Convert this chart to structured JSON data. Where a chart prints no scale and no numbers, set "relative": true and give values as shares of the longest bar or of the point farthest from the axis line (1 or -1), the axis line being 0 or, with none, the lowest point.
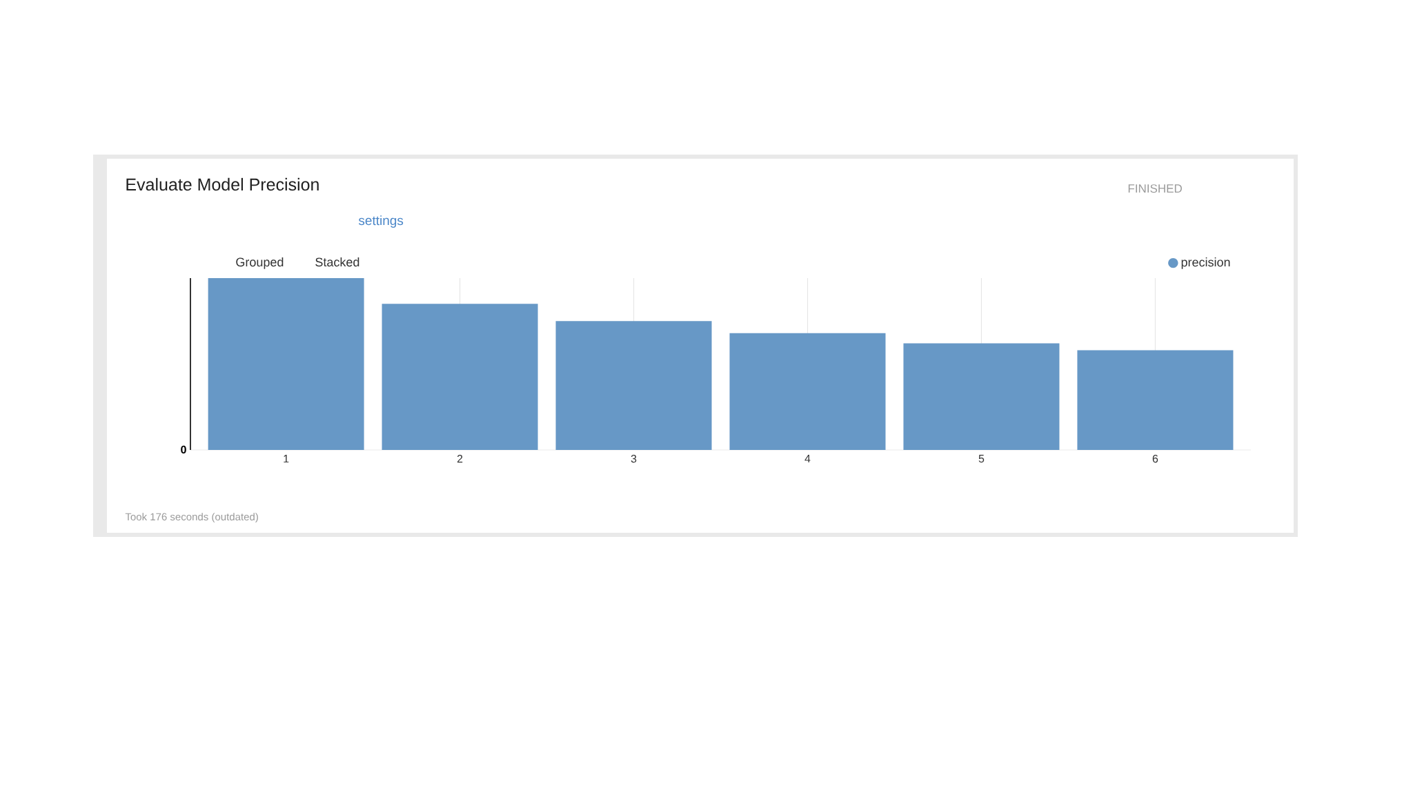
{
  "chart_data": {
    "type": "bar",
    "title": "Evaluate Model Precision",
    "categories": [
      "1",
      "2",
      "3",
      "4",
      "5",
      "6"
    ],
    "series": [
      {
        "name": "precision",
        "color": "#6798c6",
        "values": [
          1,
          0.85,
          0.75,
          0.68,
          0.62,
          0.58
        ]
      }
    ],
    "relative": true,
    "grid": true,
    "legend": "top right",
    "annotations": [
      "FINISHED",
      "settings",
      "Grouped",
      "Stacked",
      "0",
      "Took 176 seconds (outdated)"
    ]
  }
}
